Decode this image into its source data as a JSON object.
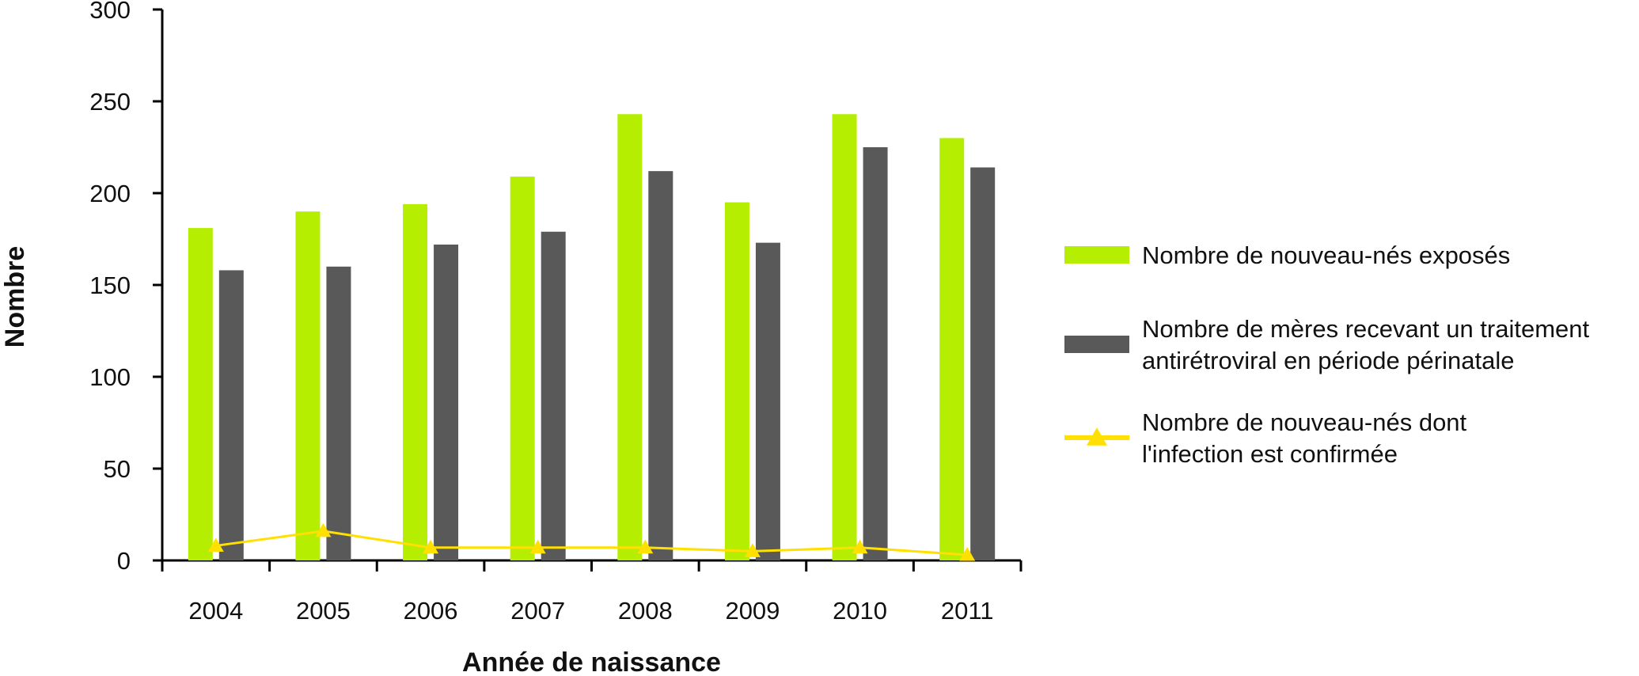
{
  "chart_data": {
    "type": "bar",
    "categories": [
      "2004",
      "2005",
      "2006",
      "2007",
      "2008",
      "2009",
      "2010",
      "2011"
    ],
    "series": [
      {
        "name": "Nombre de nouveau-nés exposés",
        "kind": "bar",
        "color": "#b5ee00",
        "values": [
          181,
          190,
          194,
          209,
          243,
          195,
          243,
          230
        ]
      },
      {
        "name": "Nombre de mères recevant un traitement antirétroviral en période périnatale",
        "name_lines": [
          "Nombre de mères recevant un traitement",
          "antirétroviral en période périnatale"
        ],
        "kind": "bar",
        "color": "#595959",
        "values": [
          158,
          160,
          172,
          179,
          212,
          173,
          225,
          214
        ]
      },
      {
        "name": "Nombre de nouveau-nés dont l'infection est confirmée",
        "name_lines": [
          "Nombre de nouveau-nés dont",
          "l'infection est confirmée"
        ],
        "kind": "line",
        "marker": "triangle",
        "color": "#ffe000",
        "values": [
          8,
          16,
          7,
          7,
          7,
          5,
          7,
          3
        ]
      }
    ],
    "xlabel": "Année de naissance",
    "ylabel": "Nombre",
    "ylim": [
      0,
      300
    ],
    "yticks": [
      0,
      50,
      100,
      150,
      200,
      250,
      300
    ],
    "grid": false,
    "legend": "right"
  }
}
